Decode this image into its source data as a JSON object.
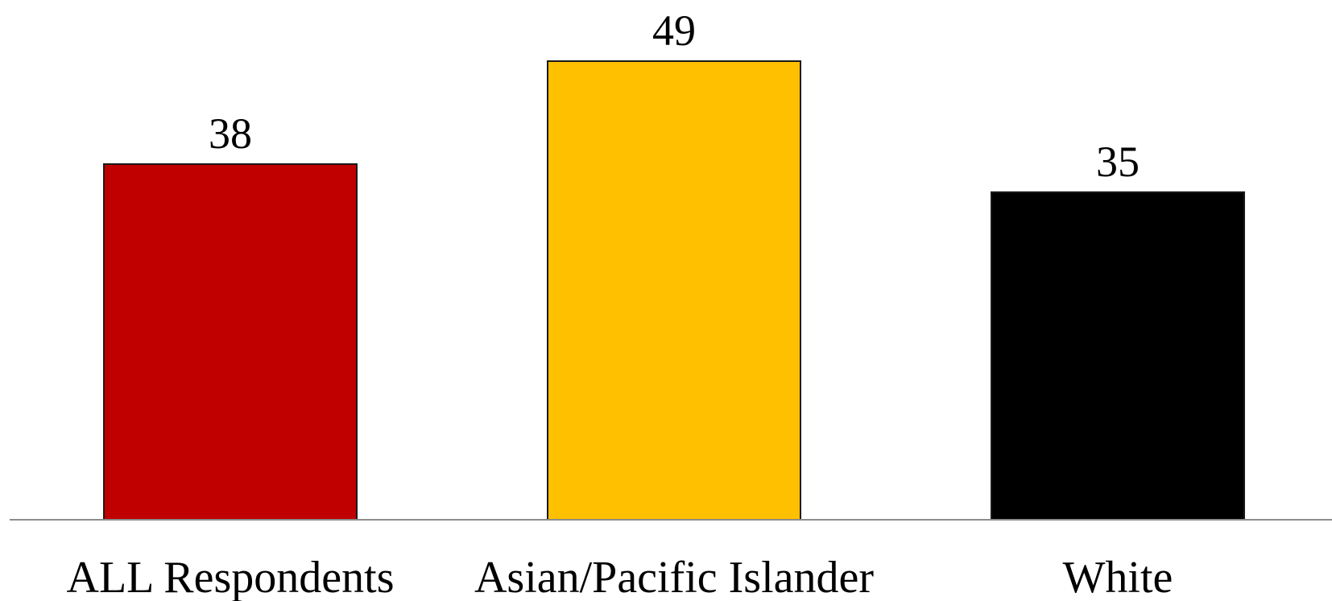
{
  "chart_data": {
    "type": "bar",
    "categories": [
      "ALL Respondents",
      "Asian/Pacific Islander",
      "White"
    ],
    "values": [
      38,
      49,
      35
    ],
    "colors": [
      "#c00000",
      "#ffc000",
      "#000000"
    ],
    "data_labels": [
      "38",
      "49",
      "35"
    ],
    "title": "",
    "xlabel": "",
    "ylabel": "",
    "ylim": [
      0,
      49
    ],
    "grid": false,
    "legend": "none"
  }
}
